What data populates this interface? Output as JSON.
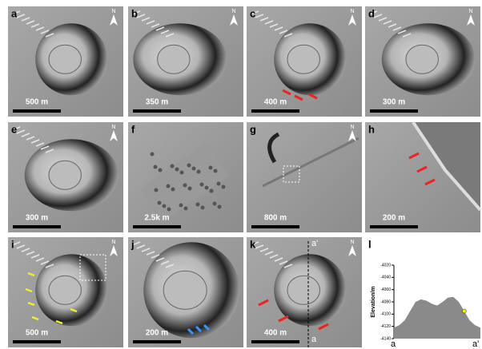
{
  "panels": [
    {
      "label": "a",
      "scale": "500 m"
    },
    {
      "label": "b",
      "scale": "350 m"
    },
    {
      "label": "c",
      "scale": "400 m"
    },
    {
      "label": "d",
      "scale": "300 m"
    },
    {
      "label": "e",
      "scale": "300 m"
    },
    {
      "label": "f",
      "scale": "2.5k m"
    },
    {
      "label": "g",
      "scale": "800 m"
    },
    {
      "label": "h",
      "scale": "200 m"
    },
    {
      "label": "i",
      "scale": "500 m"
    },
    {
      "label": "j",
      "scale": "200 m"
    },
    {
      "label": "k",
      "scale": "400 m",
      "section_start": "a",
      "section_end": "a'"
    },
    {
      "label": "l"
    }
  ],
  "north": "N",
  "chart_data": {
    "type": "area",
    "ylabel": "Elevation/m",
    "x_start_label": "a",
    "x_end_label": "a'",
    "ylim": [
      -4140,
      -4020
    ],
    "yticks": [
      -4020,
      -4040,
      -4060,
      -4080,
      -4100,
      -4120,
      -4140
    ],
    "values": [
      -4122,
      -4118,
      -4110,
      -4095,
      -4080,
      -4076,
      -4078,
      -4083,
      -4086,
      -4080,
      -4073,
      -4072,
      -4080,
      -4095,
      -4110,
      -4118,
      -4122
    ]
  }
}
